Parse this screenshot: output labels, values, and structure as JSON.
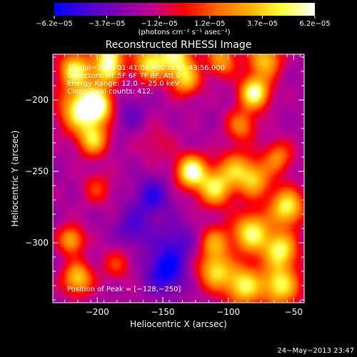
{
  "chart_data": {
    "type": "heatmap",
    "title": "Reconstructed RHESSI Image",
    "xlabel": "Heliocentric X (arcsec)",
    "ylabel": "Heliocentric Y (arcsec)",
    "xlim": [
      -234,
      -42
    ],
    "ylim": [
      -342,
      -168
    ],
    "x_ticks": [
      -200,
      -150,
      -100,
      -50
    ],
    "x_tick_labels": [
      "−200",
      "−150",
      "−100",
      "−50"
    ],
    "y_ticks": [
      -200,
      -250,
      -300
    ],
    "y_tick_labels": [
      "−200",
      "−250",
      "−300"
    ],
    "colorbar": {
      "range": [
        -6.2e-05,
        6.2e-05
      ],
      "ticks": [
        -6.2e-05,
        -3.7e-05,
        -1.2e-05,
        1.2e-05,
        3.7e-05,
        6.2e-05
      ],
      "tick_labels": [
        "−6.2e−05",
        "−3.7e−05",
        "−1.2e−05",
        "1.2e−05",
        "3.7e−05",
        "6.2e−05"
      ],
      "units": "(photons cm⁻² s⁻¹ asec⁻²)",
      "colors": [
        "#0000ff",
        "#4a00d8",
        "#8000b0",
        "#c00090",
        "#ff0000",
        "#ff6a00",
        "#ffb000",
        "#ffff40",
        "#ffffff"
      ]
    },
    "annotations": [
      "11−Jul−2003 01:41:08.000 to 01:43:56.000",
      "Detectors: 4F 5F 6F 7F 8F, Att 0",
      "Energy Range: 12.0 − 25.0 keV",
      "Clean    Total counts: 412."
    ],
    "peak_label": "Position of Peak = [−128,−250]",
    "peak": [
      -128,
      -250
    ],
    "blobs": [
      {
        "x": -217,
        "y": -179,
        "a": 0.9,
        "s": 9
      },
      {
        "x": -193,
        "y": -180,
        "a": 0.75,
        "s": 8
      },
      {
        "x": -190,
        "y": -168,
        "a": 0.8,
        "s": 7
      },
      {
        "x": -213,
        "y": -207,
        "a": 0.95,
        "s": 11
      },
      {
        "x": -200,
        "y": -204,
        "a": 1.0,
        "s": 8
      },
      {
        "x": -203,
        "y": -228,
        "a": 0.75,
        "s": 8
      },
      {
        "x": -160,
        "y": -174,
        "a": 0.85,
        "s": 9
      },
      {
        "x": -140,
        "y": -170,
        "a": 0.85,
        "s": 9
      },
      {
        "x": -132,
        "y": -186,
        "a": 0.7,
        "s": 8
      },
      {
        "x": -105,
        "y": -172,
        "a": 0.65,
        "s": 8
      },
      {
        "x": -80,
        "y": -195,
        "a": 1.05,
        "s": 8
      },
      {
        "x": -72,
        "y": -172,
        "a": 0.75,
        "s": 9
      },
      {
        "x": -90,
        "y": -218,
        "a": 0.55,
        "s": 8
      },
      {
        "x": -128,
        "y": -250,
        "a": 1.1,
        "s": 8
      },
      {
        "x": -110,
        "y": -262,
        "a": 0.85,
        "s": 9
      },
      {
        "x": -95,
        "y": -248,
        "a": 0.6,
        "s": 9
      },
      {
        "x": -80,
        "y": -256,
        "a": 0.7,
        "s": 9
      },
      {
        "x": -62,
        "y": -240,
        "a": 0.55,
        "s": 8
      },
      {
        "x": -55,
        "y": -275,
        "a": 0.95,
        "s": 9
      },
      {
        "x": -82,
        "y": -293,
        "a": 0.95,
        "s": 10
      },
      {
        "x": -60,
        "y": -305,
        "a": 0.9,
        "s": 9
      },
      {
        "x": -110,
        "y": -300,
        "a": 0.6,
        "s": 8
      },
      {
        "x": -110,
        "y": -320,
        "a": 0.8,
        "s": 9
      },
      {
        "x": -88,
        "y": -330,
        "a": 0.9,
        "s": 10
      },
      {
        "x": -60,
        "y": -330,
        "a": 0.9,
        "s": 10
      },
      {
        "x": -220,
        "y": -298,
        "a": 0.7,
        "s": 7
      },
      {
        "x": -215,
        "y": -325,
        "a": 0.8,
        "s": 8
      },
      {
        "x": -200,
        "y": -262,
        "a": 0.35,
        "s": 8
      },
      {
        "x": -185,
        "y": -315,
        "a": 0.35,
        "s": 8
      },
      {
        "x": -155,
        "y": -230,
        "a": 0.2,
        "s": 10
      },
      {
        "x": -148,
        "y": -320,
        "a": -0.55,
        "s": 10
      },
      {
        "x": -158,
        "y": -268,
        "a": -0.4,
        "s": 9
      },
      {
        "x": -172,
        "y": -290,
        "a": -0.3,
        "s": 10
      },
      {
        "x": -140,
        "y": -300,
        "a": -0.3,
        "s": 10
      },
      {
        "x": -175,
        "y": -210,
        "a": -0.2,
        "s": 9
      }
    ]
  },
  "footer": {
    "timestamp": "24−May−2013 23:47"
  }
}
